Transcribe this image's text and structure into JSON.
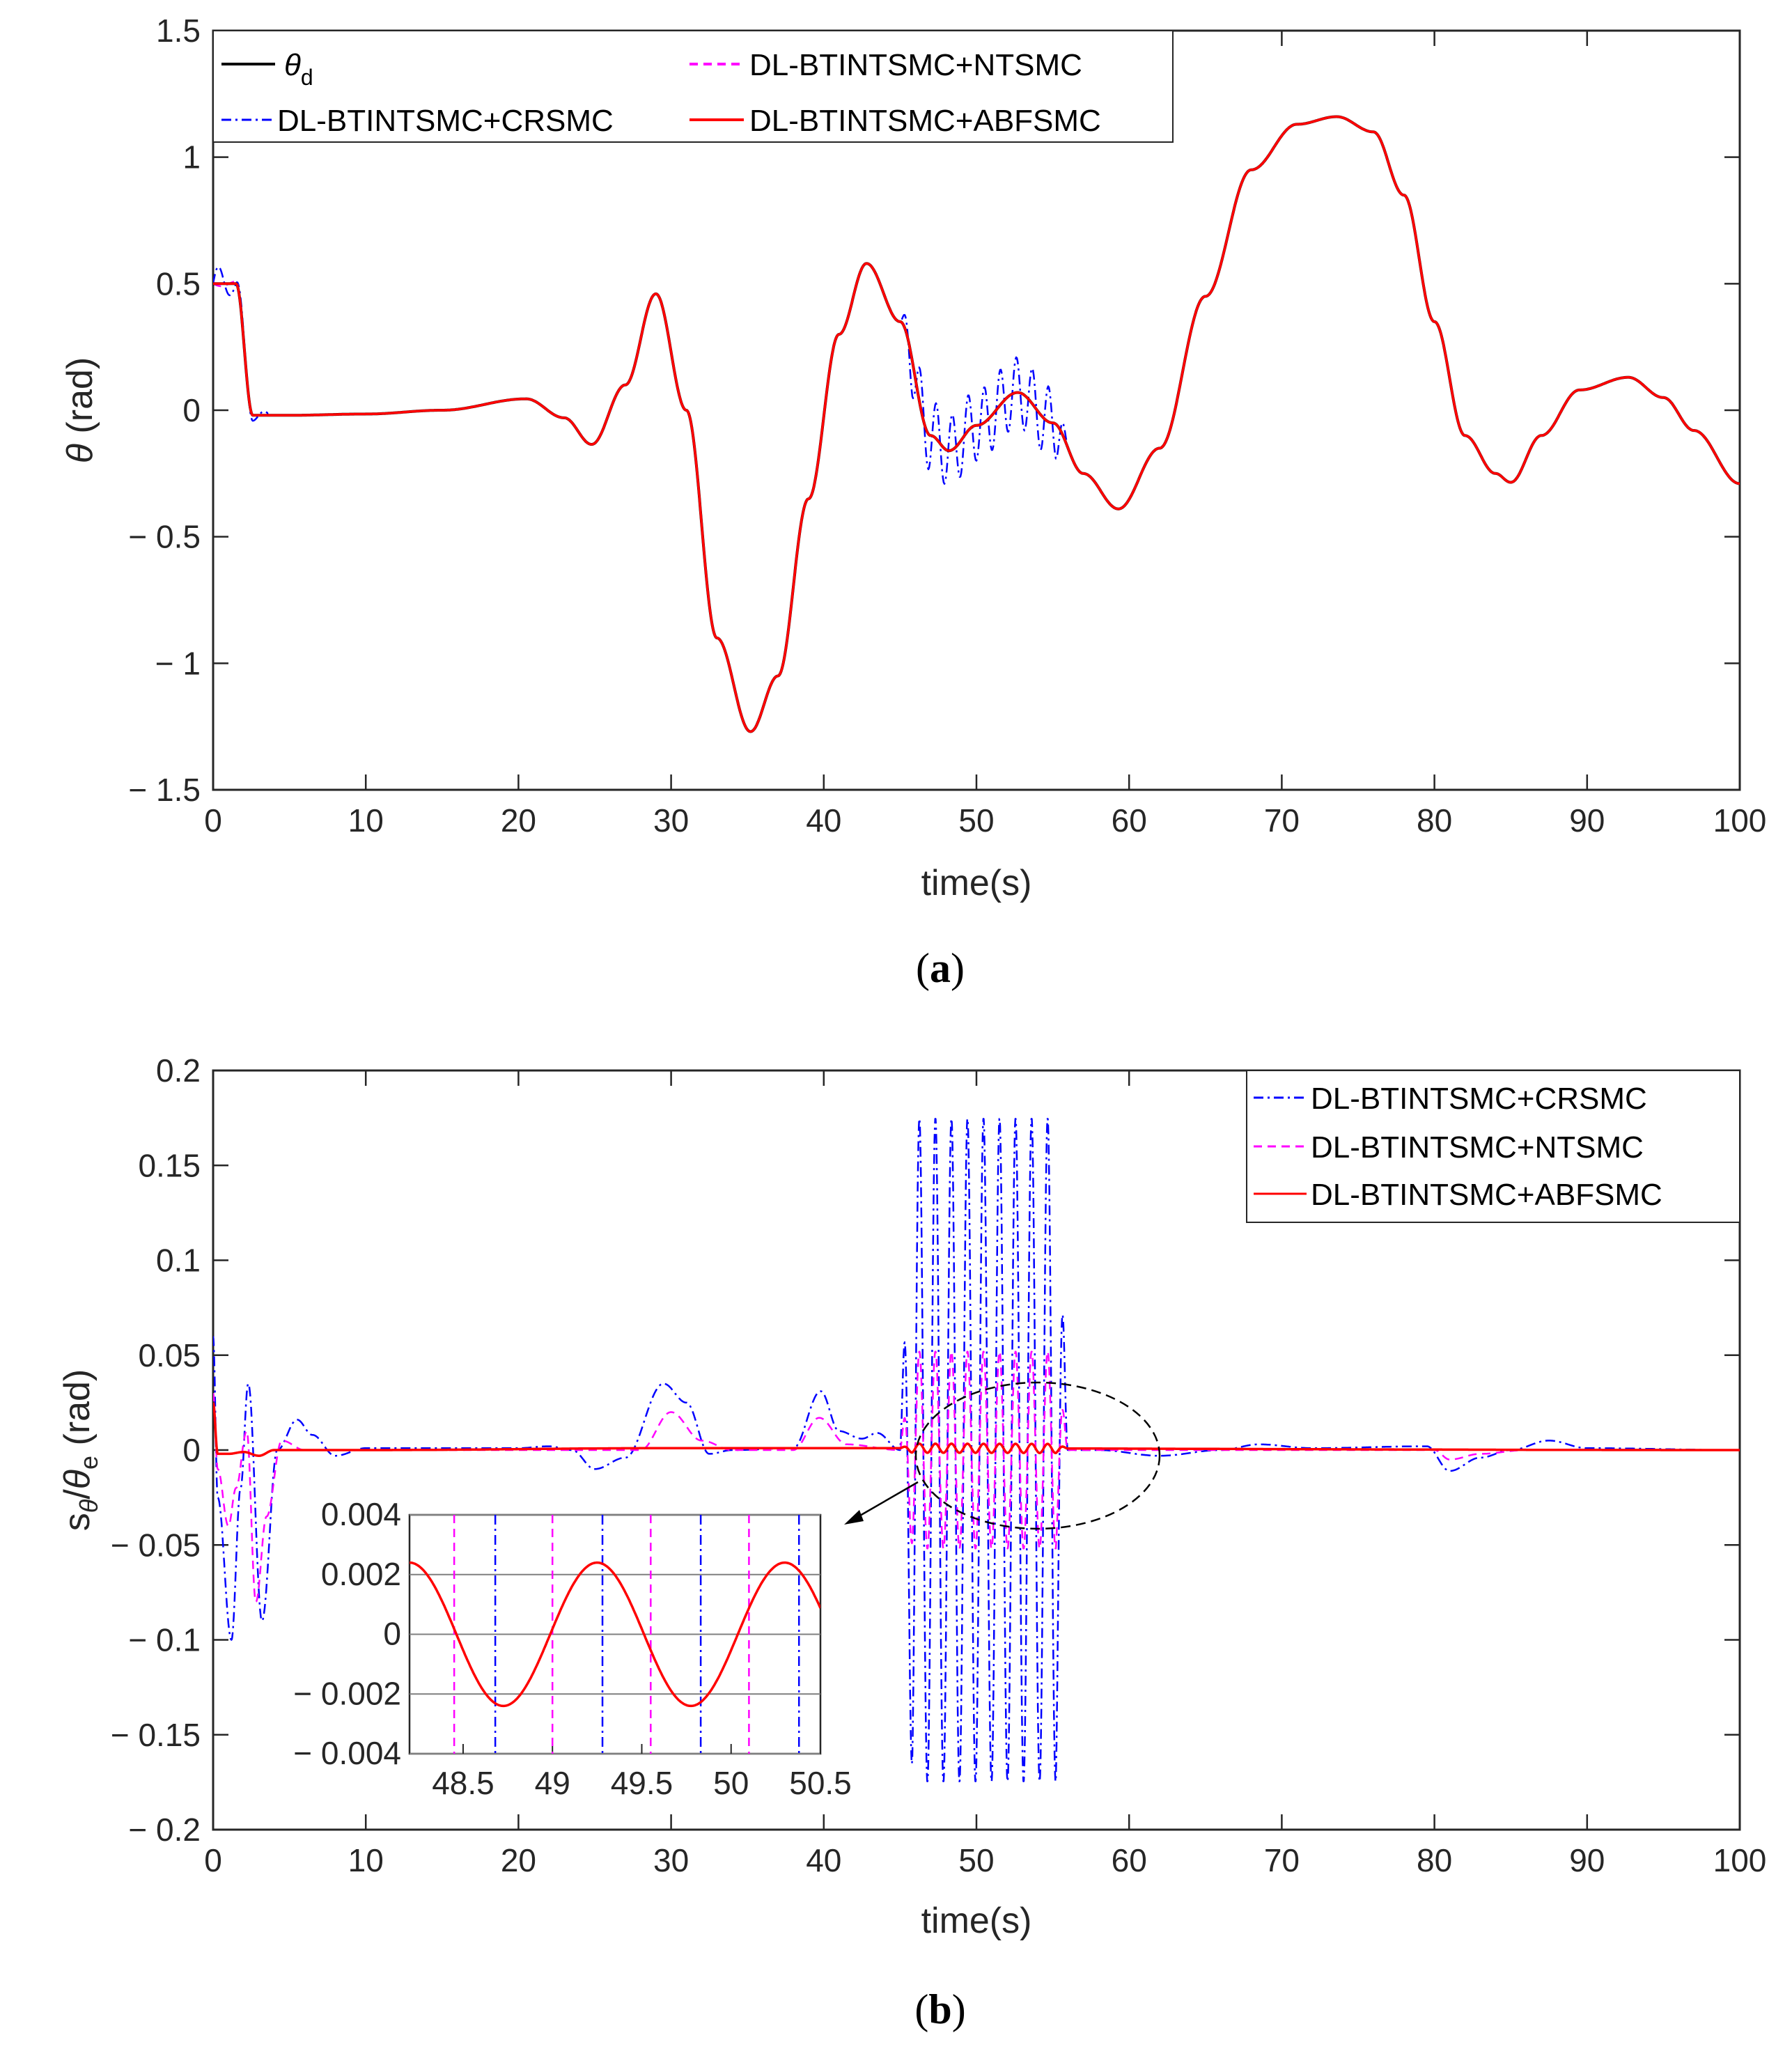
{
  "colors": {
    "theta_d": "#000000",
    "crsmc": "#0000ff",
    "ntsmc": "#ff00ff",
    "abfsmc": "#ff0000",
    "axis": "#262626"
  },
  "chart_data": [
    {
      "id": "a",
      "type": "line",
      "caption": "(a)",
      "xlabel": "time(s)",
      "ylabel": "θ (rad)",
      "xlim": [
        0,
        100
      ],
      "ylim": [
        -1.5,
        1.5
      ],
      "xticks": [
        0,
        10,
        20,
        30,
        40,
        50,
        60,
        70,
        80,
        90,
        100
      ],
      "yticks": [
        -1.5,
        -1,
        -0.5,
        0,
        0.5,
        1,
        1.5
      ],
      "ytick_labels": [
        "− 1.5",
        "− 1",
        "− 0.5",
        "0",
        "0.5",
        "1",
        "1.5"
      ],
      "legend": [
        {
          "key": "theta_d",
          "label": "θ",
          "sub": "d"
        },
        {
          "key": "ntsmc",
          "label": "DL-BTINTSMC+NTSMC"
        },
        {
          "key": "crsmc",
          "label": "DL-BTINTSMC+CRSMC"
        },
        {
          "key": "abfsmc",
          "label": "DL-BTINTSMC+ABFSMC"
        }
      ],
      "reference_curve": {
        "x": [
          0,
          1.5,
          2.6,
          5,
          10,
          15,
          20.5,
          23,
          24.8,
          27,
          29,
          31,
          33,
          35.2,
          37,
          39,
          41,
          42.8,
          45,
          47,
          48.2,
          50,
          52.7,
          55,
          57,
          59.3,
          62,
          65,
          68,
          71,
          73.6,
          76,
          78,
          80,
          82,
          84,
          85,
          87,
          89.5,
          92.7,
          95,
          97,
          100
        ],
        "y": [
          0.5,
          0.5,
          -0.02,
          -0.02,
          -0.015,
          0.0,
          0.045,
          -0.03,
          -0.135,
          0.1,
          0.46,
          0.0,
          -0.9,
          -1.27,
          -1.05,
          -0.35,
          0.3,
          0.58,
          0.35,
          -0.1,
          -0.16,
          -0.06,
          0.07,
          -0.05,
          -0.25,
          -0.39,
          -0.15,
          0.45,
          0.95,
          1.13,
          1.16,
          1.1,
          0.85,
          0.35,
          -0.1,
          -0.25,
          -0.285,
          -0.1,
          0.08,
          0.13,
          0.05,
          -0.08,
          -0.29
        ]
      },
      "series": [
        {
          "key": "theta_d",
          "name": "θd"
        },
        {
          "key": "ntsmc",
          "name": "DL-BTINTSMC+NTSMC"
        },
        {
          "key": "crsmc",
          "name": "DL-BTINTSMC+CRSMC",
          "oscillation": {
            "start": 45,
            "end": 56,
            "amplitude": 0.14,
            "period": 1.05
          }
        },
        {
          "key": "abfsmc",
          "name": "DL-BTINTSMC+ABFSMC"
        }
      ]
    },
    {
      "id": "b",
      "type": "line",
      "caption": "(b)",
      "xlabel": "time(s)",
      "ylabel": "sθ/θe (rad)",
      "xlim": [
        0,
        100
      ],
      "ylim": [
        -0.2,
        0.2
      ],
      "xticks": [
        0,
        10,
        20,
        30,
        40,
        50,
        60,
        70,
        80,
        90,
        100
      ],
      "yticks": [
        -0.2,
        -0.15,
        -0.1,
        -0.05,
        0,
        0.05,
        0.1,
        0.15,
        0.2
      ],
      "ytick_labels": [
        "− 0.2",
        "− 0.15",
        "− 0.1",
        "− 0.05",
        "0",
        "0.05",
        "0.1",
        "0.15",
        "0.2"
      ],
      "legend": [
        {
          "key": "crsmc",
          "label": "DL-BTINTSMC+CRSMC"
        },
        {
          "key": "ntsmc",
          "label": "DL-BTINTSMC+NTSMC"
        },
        {
          "key": "abfsmc",
          "label": "DL-BTINTSMC+ABFSMC"
        }
      ],
      "series": [
        {
          "key": "crsmc",
          "name": "DL-BTINTSMC+CRSMC",
          "x": [
            0,
            0.3,
            1.2,
            1.8,
            2.3,
            3.2,
            4.2,
            5.5,
            6.5,
            8,
            10,
            20,
            22,
            23.5,
            25,
            27,
            29.5,
            31,
            32.5,
            34,
            38,
            39.8,
            41,
            42.5,
            43.5,
            45,
            56.5,
            58,
            62,
            66,
            68.5,
            72,
            79.5,
            81,
            83,
            85,
            87.5,
            90,
            100
          ],
          "y": [
            0.06,
            -0.025,
            -0.1,
            -0.02,
            0.035,
            -0.09,
            0.0,
            0.016,
            0.008,
            -0.003,
            0.001,
            0.001,
            0.002,
            0.0,
            -0.01,
            -0.004,
            0.035,
            0.025,
            -0.002,
            0.0,
            0.001,
            0.031,
            0.01,
            0.006,
            0.009,
            0.0,
            0.0,
            0.0,
            -0.003,
            0.0,
            0.003,
            0.001,
            0.002,
            -0.011,
            -0.004,
            0.0,
            0.005,
            0.001,
            0.0
          ],
          "oscillation": {
            "start": 45,
            "end": 56,
            "amplitude": 0.175,
            "period": 1.05
          }
        },
        {
          "key": "ntsmc",
          "name": "DL-BTINTSMC+NTSMC",
          "x": [
            0,
            0.3,
            1.0,
            1.5,
            2.2,
            2.8,
            3.5,
            4.5,
            6,
            10,
            20,
            25,
            28,
            30,
            32,
            34,
            38,
            39.7,
            41.5,
            45,
            56.5,
            58,
            80,
            81,
            83,
            86,
            100
          ],
          "y": [
            0.03,
            -0.01,
            -0.04,
            -0.02,
            0.01,
            -0.08,
            -0.035,
            0.005,
            0.0,
            0.0,
            0.0,
            0.0,
            0.0,
            0.02,
            0.005,
            0.0,
            0.0,
            0.017,
            0.003,
            0.0,
            0.0,
            0.0,
            0.0,
            -0.005,
            -0.002,
            0.0,
            0.0
          ],
          "oscillation": {
            "start": 45,
            "end": 56,
            "amplitude": 0.052,
            "period": 1.05
          }
        },
        {
          "key": "abfsmc",
          "name": "DL-BTINTSMC+ABFSMC",
          "x": [
            0,
            0.3,
            1.0,
            2.0,
            3.0,
            4.0,
            6.0,
            10,
            30,
            40,
            100
          ],
          "y": [
            0.025,
            -0.002,
            -0.002,
            -0.001,
            -0.003,
            0.0,
            0.0,
            0.0,
            0.001,
            0.001,
            0.0
          ],
          "oscillation": {
            "start": 45,
            "end": 56,
            "amplitude": 0.0024,
            "period": 1.05
          }
        }
      ],
      "inset": {
        "xlim": [
          48.2,
          50.5
        ],
        "ylim": [
          -0.004,
          0.004
        ],
        "xticks": [
          48.5,
          49,
          49.5,
          50,
          50.5
        ],
        "xtick_labels": [
          "48.5",
          "49",
          "49.5",
          "50",
          "50.5"
        ],
        "yticks": [
          -0.004,
          -0.002,
          0,
          0.002,
          0.004
        ],
        "ytick_labels": [
          "− 0.004",
          "− 0.002",
          "0",
          "0.002",
          "0.004"
        ],
        "abfsmc": {
          "amplitude": 0.0024,
          "period": 1.05,
          "peaks": [
            48.2,
            49.25,
            50.3
          ]
        },
        "ntsmc_crossings": [
          48.45,
          49.0,
          49.55,
          50.1
        ],
        "crsmc_crossings": [
          48.68,
          49.28,
          49.83,
          50.38
        ]
      }
    }
  ]
}
